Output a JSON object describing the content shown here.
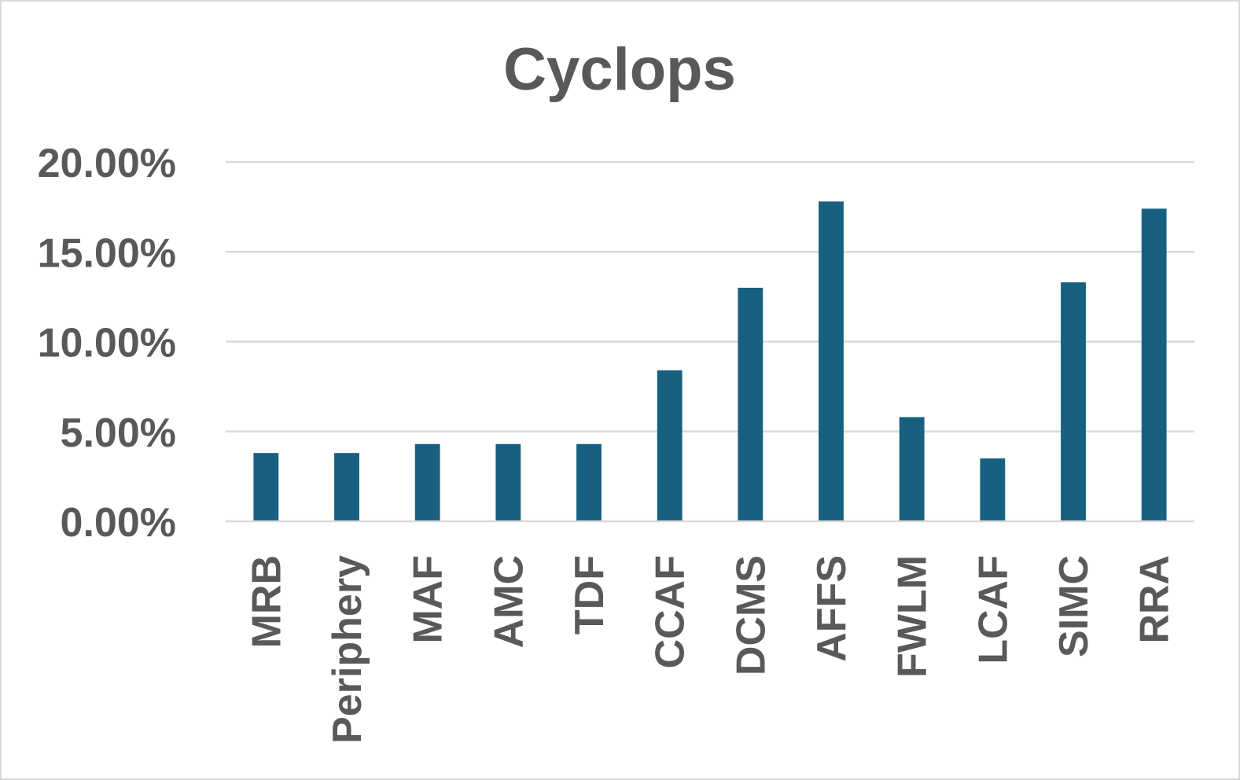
{
  "chart_data": {
    "type": "bar",
    "title": "Cyclops",
    "xlabel": "",
    "ylabel": "",
    "categories": [
      "MRB",
      "Periphery",
      "MAF",
      "AMC",
      "TDF",
      "CCAF",
      "DCMS",
      "AFFS",
      "FWLM",
      "LCAF",
      "SIMC",
      "RRA"
    ],
    "values": [
      0.038,
      0.038,
      0.043,
      0.043,
      0.043,
      0.084,
      0.13,
      0.178,
      0.058,
      0.035,
      0.133,
      0.174
    ],
    "ylim": [
      0,
      0.2
    ],
    "yticks": [
      0,
      0.05,
      0.1,
      0.15,
      0.2
    ],
    "ytick_labels": [
      "0.00%",
      "5.00%",
      "10.00%",
      "15.00%",
      "20.00%"
    ],
    "grid": true,
    "legend": "none",
    "bar_color": "#17607f"
  }
}
